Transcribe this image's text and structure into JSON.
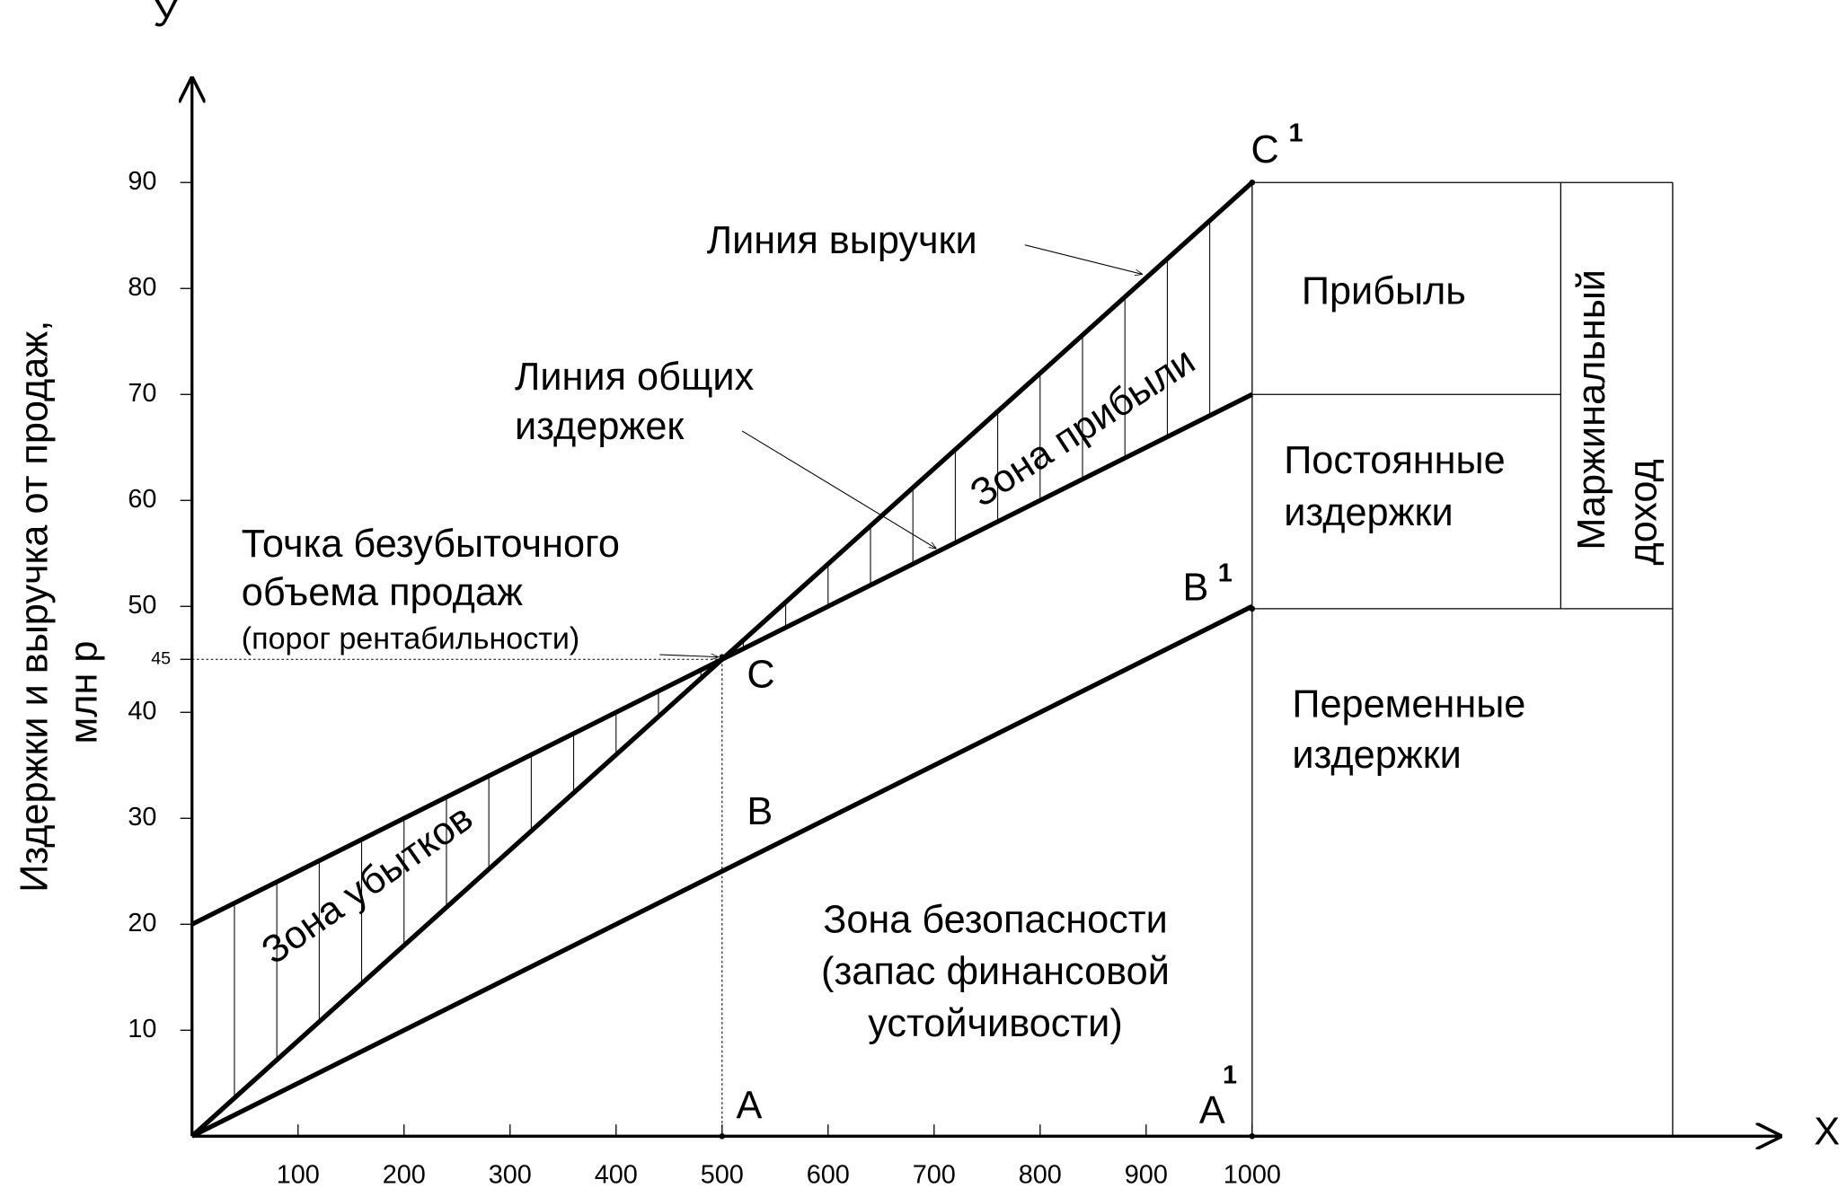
{
  "chart_data": {
    "type": "line",
    "x_label": "Х",
    "y_label": "У",
    "y_axis_title": [
      "Издержки и выручка от продаж,",
      "млн р"
    ],
    "x": [
      0,
      1000
    ],
    "series": [
      {
        "color": "#000000",
        "values": [
          0,
          90
        ]
      },
      {
        "color": "#000000",
        "values": [
          20,
          70
        ]
      },
      {
        "color": "#000000",
        "values": [
          0,
          50
        ]
      }
    ],
    "xlim": [
      0,
      1500
    ],
    "ylim": [
      0,
      100
    ],
    "xticks": [
      100,
      200,
      300,
      400,
      500,
      600,
      700,
      800,
      900,
      1000
    ],
    "yticks": [
      10,
      20,
      30,
      40,
      45,
      50,
      60,
      70,
      80,
      90
    ],
    "break_even": {
      "x": 500,
      "y": 45
    },
    "points": [
      {
        "label": "C"
      },
      {
        "label": "C",
        "sup": "1"
      },
      {
        "label": "B"
      },
      {
        "label": "B",
        "sup": "1"
      },
      {
        "label": "A"
      },
      {
        "label": "A",
        "sup": "1"
      }
    ],
    "annotations": {
      "revenue_line": "Линия выручки",
      "total_cost_line": [
        "Линия общих",
        "издержек"
      ],
      "break_even": [
        "Точка безубыточного",
        "объема продаж"
      ],
      "threshold": "(порог рентабильности)",
      "profit_zone": "Зона прибыли",
      "loss_zone": "Зона убытков",
      "safety_zone": [
        "Зона безопасности",
        "(запас финансовой",
        "устойчивости)"
      ],
      "profit": "Прибыль",
      "fixed_costs": [
        "Постоянные",
        "издержки"
      ],
      "variable_costs": [
        "Переменные",
        "издержки"
      ],
      "marginal_income": [
        "Маржинальный",
        "доход"
      ]
    }
  }
}
